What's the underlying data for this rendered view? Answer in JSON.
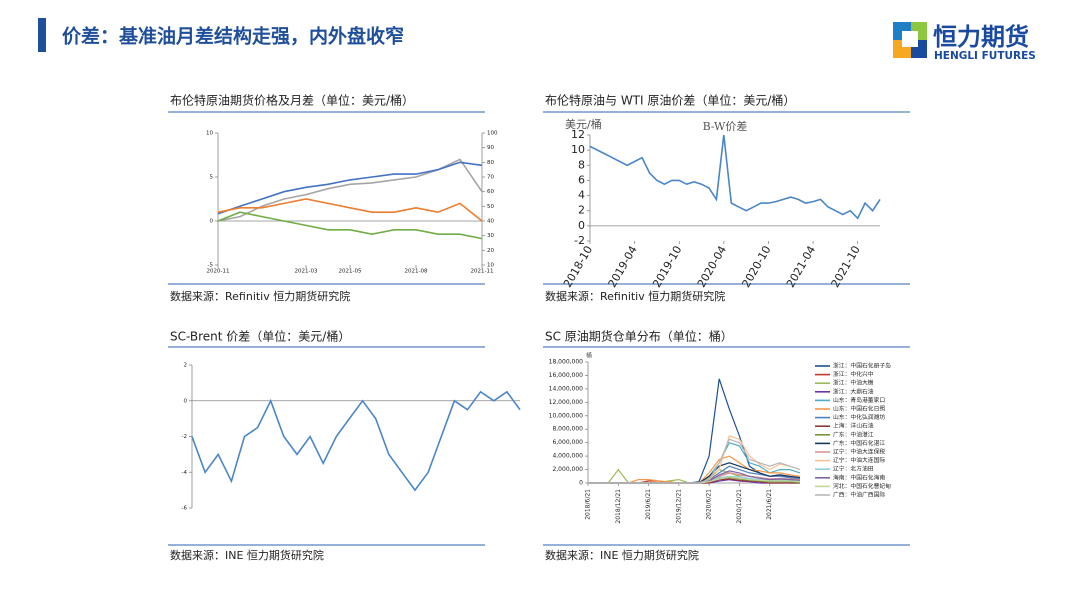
{
  "header": {
    "title": "价差：基准油月差结构走强，内外盘收窄",
    "logo_cn": "恒力期货",
    "logo_en": "HENGLI FUTURES"
  },
  "panels": [
    {
      "title": "布伦特原油期货价格及月差（单位：美元/桶）",
      "source": "数据来源：Refinitiv 恒力期货研究院"
    },
    {
      "title": "布伦特原油与 WTI 原油价差（单位：美元/桶）",
      "source": "数据来源：Refinitiv 恒力期货研究院"
    },
    {
      "title": "SC-Brent 价差（单位：美元/桶）",
      "source": "数据来源：INE 恒力期货研究院"
    },
    {
      "title": "SC 原油期货仓单分布（单位：桶）",
      "source": "数据来源：INE 恒力期货研究院"
    }
  ],
  "chart_data": [
    {
      "type": "line",
      "categories": [
        "2020-11",
        null,
        null,
        null,
        "2021-03",
        null,
        "2021-05",
        null,
        null,
        "2021-08",
        null,
        null,
        "2021-11"
      ],
      "ylim": [
        -5,
        10
      ],
      "yticks": [
        -5,
        0,
        5,
        10
      ],
      "y2lim": [
        10,
        100
      ],
      "y2ticks": [
        10,
        20,
        30,
        40,
        50,
        60,
        70,
        80,
        90,
        100
      ],
      "series": [
        {
          "color": "#a5a5a5",
          "axis": "y2",
          "values": [
            40,
            43,
            50,
            55,
            58,
            62,
            65,
            66,
            68,
            70,
            75,
            82,
            60
          ]
        },
        {
          "color": "#4472c4",
          "axis": "y2",
          "values": [
            45,
            50,
            55,
            60,
            63,
            65,
            68,
            70,
            72,
            72,
            75,
            80,
            78
          ]
        },
        {
          "color": "#ed7d31",
          "values": [
            1,
            1.5,
            1.5,
            2,
            2.5,
            2,
            1.5,
            1,
            1,
            1.5,
            1,
            2,
            0
          ]
        },
        {
          "color": "#70ad47",
          "values": [
            0,
            1,
            0.5,
            0,
            -0.5,
            -1,
            -1,
            -1.5,
            -1,
            -1,
            -1.5,
            -1.5,
            -2
          ]
        }
      ]
    },
    {
      "type": "line",
      "title": "B-W价差",
      "y_label": "美元/桶",
      "categories": [
        "2018-10",
        null,
        null,
        null,
        null,
        null,
        "2019-04",
        null,
        null,
        null,
        null,
        null,
        "2019-10",
        null,
        null,
        null,
        null,
        null,
        "2020-04",
        null,
        null,
        null,
        null,
        null,
        "2020-10",
        null,
        null,
        null,
        null,
        null,
        "2021-04",
        null,
        null,
        null,
        null,
        null,
        "2021-10",
        null,
        null,
        null
      ],
      "ylim": [
        -2,
        12
      ],
      "yticks": [
        -2,
        0,
        2,
        4,
        6,
        8,
        10,
        12
      ],
      "series": [
        {
          "color": "#4a86c8",
          "values": [
            10.5,
            10,
            9.5,
            9,
            8.5,
            8,
            8.5,
            9,
            7,
            6,
            5.5,
            6,
            6,
            5.5,
            5.8,
            5.5,
            5,
            3.5,
            12,
            3,
            2.5,
            2,
            2.5,
            3,
            3,
            3.2,
            3.5,
            3.8,
            3.5,
            3,
            3.2,
            3.5,
            2.5,
            2,
            1.5,
            2,
            1,
            3,
            2,
            3.5
          ]
        }
      ]
    },
    {
      "type": "line",
      "ylim": [
        -6,
        2
      ],
      "yticks": [
        -6,
        -4,
        -2,
        0,
        2
      ],
      "series": [
        {
          "color": "#4a86c8",
          "values": [
            -2,
            -4,
            -3,
            -4.5,
            -2,
            -1.5,
            0,
            -2,
            -3,
            -2,
            -3.5,
            -2,
            -1,
            0,
            -1,
            -3,
            -4,
            -5,
            -4,
            -2,
            0,
            -0.5,
            0.5,
            0,
            0.5,
            -0.5
          ]
        }
      ]
    },
    {
      "type": "line",
      "y_label": "桶",
      "categories": [
        "2018/6/21",
        null,
        null,
        "2018/12/21",
        null,
        null,
        "2019/6/21",
        null,
        null,
        "2019/12/21",
        null,
        null,
        "2020/6/21",
        null,
        null,
        "2020/12/21",
        null,
        null,
        "2021/6/21",
        null,
        null,
        null
      ],
      "ylim": [
        0,
        18000000
      ],
      "yticks": [
        0,
        {
          "value": 2000000,
          "label": "2,000,000"
        },
        {
          "value": 4000000,
          "label": "4,000,000"
        },
        {
          "value": 6000000,
          "label": "6,000,000"
        },
        {
          "value": 8000000,
          "label": "8,000,000"
        },
        {
          "value": 10000000,
          "label": "10,000,000"
        },
        {
          "value": 12000000,
          "label": "12,000,000"
        },
        {
          "value": 14000000,
          "label": "14,000,000"
        },
        {
          "value": 16000000,
          "label": "16,000,000"
        },
        {
          "value": 18000000,
          "label": "18,000,000"
        }
      ],
      "series": [
        {
          "name": "浙江：中国石化册子岛",
          "color": "#1f4e9a",
          "values": [
            0,
            0,
            0,
            0,
            0,
            0,
            0,
            0,
            0,
            0,
            0,
            200000,
            4000000,
            15500000,
            11000000,
            7000000,
            2500000,
            1500000,
            1000000,
            1200000,
            800000,
            600000
          ]
        },
        {
          "name": "浙江：中化兴中",
          "color": "#c0392b",
          "values": [
            0,
            0,
            0,
            0,
            0,
            0,
            300000,
            300000,
            0,
            0,
            0,
            0,
            500000,
            1000000,
            1500000,
            1200000,
            1000000,
            800000,
            600000,
            600000,
            400000,
            300000
          ]
        },
        {
          "name": "浙江：中油大榭",
          "color": "#9bbb59",
          "values": [
            0,
            0,
            0,
            2000000,
            0,
            0,
            0,
            0,
            300000,
            500000,
            0,
            0,
            800000,
            2000000,
            1500000,
            1000000,
            500000,
            400000,
            300000,
            500000,
            300000,
            200000
          ]
        },
        {
          "name": "浙江：大鼎石油",
          "color": "#7030a0",
          "values": [
            0,
            0,
            0,
            0,
            0,
            0,
            0,
            0,
            0,
            0,
            0,
            0,
            0,
            300000,
            500000,
            300000,
            200000,
            0,
            0,
            0,
            0,
            0
          ]
        },
        {
          "name": "山东：青岛港董家口",
          "color": "#4bacc6",
          "values": [
            0,
            0,
            0,
            0,
            0,
            0,
            0,
            0,
            0,
            0,
            0,
            0,
            1000000,
            3000000,
            6000000,
            5500000,
            3000000,
            2500000,
            1500000,
            2000000,
            2000000,
            1500000
          ]
        },
        {
          "name": "山东：中国石化日照",
          "color": "#f79646",
          "values": [
            0,
            0,
            0,
            0,
            0,
            500000,
            500000,
            300000,
            200000,
            0,
            0,
            0,
            1500000,
            3500000,
            4000000,
            3000000,
            2000000,
            1800000,
            1500000,
            1500000,
            1200000,
            1000000
          ]
        },
        {
          "name": "山东：中化弘润潍坊",
          "color": "#4f81bd",
          "values": [
            0,
            0,
            0,
            0,
            0,
            0,
            0,
            0,
            0,
            0,
            0,
            0,
            500000,
            1500000,
            2500000,
            2000000,
            1500000,
            1300000,
            1000000,
            1000000,
            800000,
            600000
          ]
        },
        {
          "name": "上海：洋山石油",
          "color": "#953735",
          "values": [
            0,
            0,
            0,
            0,
            0,
            0,
            0,
            0,
            0,
            0,
            0,
            0,
            0,
            500000,
            600000,
            400000,
            300000,
            200000,
            0,
            0,
            0,
            0
          ]
        },
        {
          "name": "广东：中油湛江",
          "color": "#77933c",
          "values": [
            0,
            0,
            0,
            0,
            0,
            0,
            0,
            0,
            0,
            0,
            0,
            0,
            300000,
            700000,
            800000,
            600000,
            400000,
            300000,
            200000,
            200000,
            200000,
            0
          ]
        },
        {
          "name": "广东：中国石化湛江",
          "color": "#17375e",
          "values": [
            0,
            0,
            0,
            0,
            0,
            0,
            0,
            0,
            0,
            0,
            0,
            0,
            1000000,
            2500000,
            3000000,
            2500000,
            2000000,
            1500000,
            1000000,
            1200000,
            1000000,
            800000
          ]
        },
        {
          "name": "辽宁：中油大连保税",
          "color": "#d99694",
          "values": [
            0,
            0,
            0,
            0,
            0,
            0,
            0,
            0,
            0,
            0,
            0,
            0,
            300000,
            1000000,
            1500000,
            1200000,
            1000000,
            800000,
            600000,
            700000,
            600000,
            500000
          ]
        },
        {
          "name": "辽宁：中油大连国际",
          "color": "#fac090",
          "values": [
            0,
            0,
            0,
            0,
            0,
            0,
            0,
            0,
            0,
            0,
            0,
            0,
            500000,
            2000000,
            7000000,
            6500000,
            4000000,
            2800000,
            2000000,
            2800000,
            2500000,
            2000000
          ]
        },
        {
          "name": "辽宁：北方油田",
          "color": "#93cddd",
          "values": [
            0,
            0,
            0,
            0,
            0,
            0,
            0,
            0,
            0,
            0,
            0,
            0,
            200000,
            800000,
            1000000,
            900000,
            700000,
            500000,
            400000,
            500000,
            400000,
            300000
          ]
        },
        {
          "name": "海南：中国石化海南",
          "color": "#8064a2",
          "values": [
            0,
            0,
            0,
            0,
            0,
            0,
            0,
            0,
            0,
            0,
            0,
            0,
            300000,
            1200000,
            1800000,
            1500000,
            1000000,
            700000,
            500000,
            600000,
            500000,
            400000
          ]
        },
        {
          "name": "河北：中国石化曹妃甸",
          "color": "#c3d69b",
          "values": [
            0,
            0,
            0,
            0,
            0,
            0,
            0,
            0,
            0,
            0,
            0,
            0,
            200000,
            600000,
            900000,
            700000,
            500000,
            400000,
            300000,
            300000,
            300000,
            200000
          ]
        },
        {
          "name": "广西：中油广西国际",
          "color": "#b7b7b7",
          "values": [
            0,
            0,
            0,
            0,
            0,
            0,
            0,
            0,
            0,
            0,
            0,
            0,
            500000,
            3000000,
            6500000,
            6000000,
            3500000,
            3000000,
            2500000,
            3000000,
            2500000,
            2000000
          ]
        }
      ]
    }
  ]
}
